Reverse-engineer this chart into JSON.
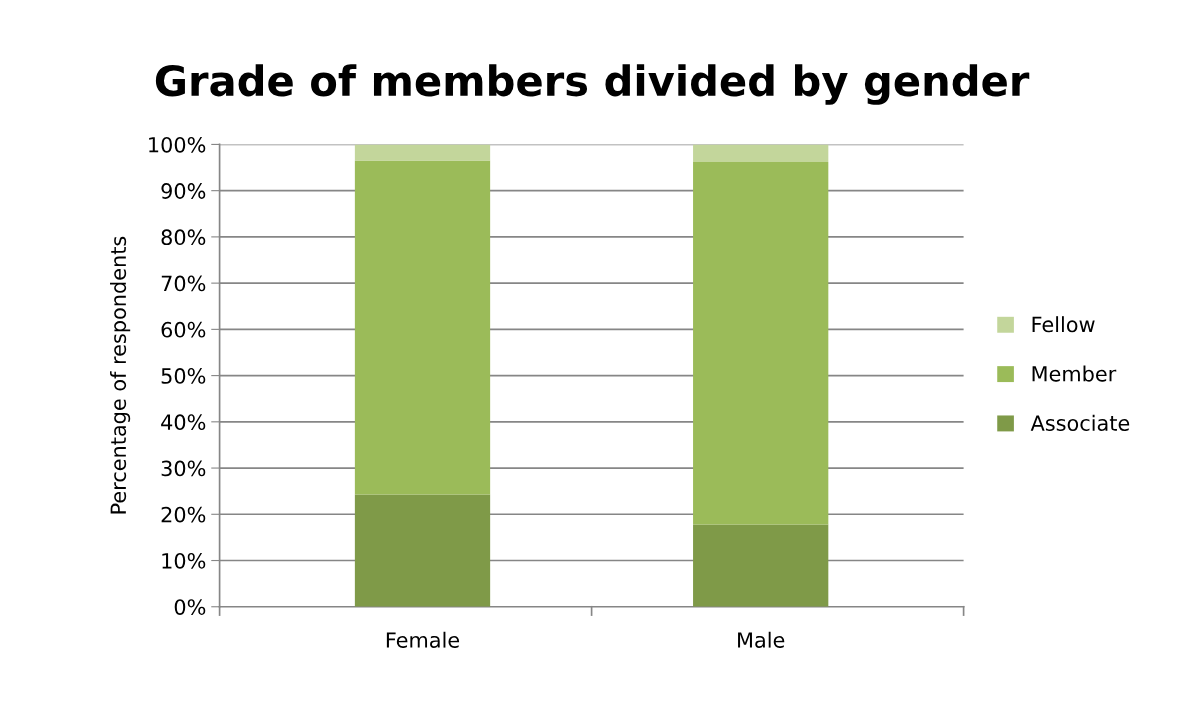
{
  "chart_data": {
    "type": "bar",
    "title": "Grade of members divided by gender",
    "ylabel": "Percentage of respondents",
    "categories": [
      "Female",
      "Male"
    ],
    "stacked": true,
    "series": [
      {
        "name": "Associate",
        "color": "#7f9a48",
        "values": [
          24.3,
          17.8
        ]
      },
      {
        "name": "Member",
        "color": "#9bbb59",
        "values": [
          72.2,
          78.4
        ]
      },
      {
        "name": "Fellow",
        "color": "#c3d69b",
        "values": [
          3.5,
          3.8
        ]
      }
    ],
    "ylim": [
      0,
      100
    ],
    "yticks": [
      {
        "value": 0,
        "label": "0%"
      },
      {
        "value": 10,
        "label": "10%"
      },
      {
        "value": 20,
        "label": "20%"
      },
      {
        "value": 30,
        "label": "30%"
      },
      {
        "value": 40,
        "label": "40%"
      },
      {
        "value": 50,
        "label": "50%"
      },
      {
        "value": 60,
        "label": "60%"
      },
      {
        "value": 70,
        "label": "70%"
      },
      {
        "value": 80,
        "label": "80%"
      },
      {
        "value": 90,
        "label": "90%"
      },
      {
        "value": 100,
        "label": "100%"
      }
    ],
    "grid": "y",
    "legend": "right"
  }
}
